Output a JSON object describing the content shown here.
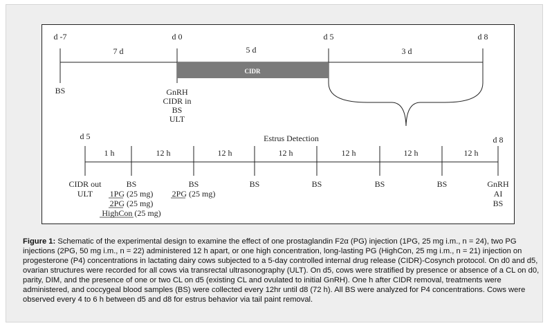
{
  "timeline1": {
    "days": [
      "d -7",
      "d 0",
      "d 5",
      "d 8"
    ],
    "intervals": [
      "7 d",
      "5 d",
      "3 d"
    ],
    "cidr_label": "CIDR",
    "events": {
      "d_minus7": [
        "BS"
      ],
      "d0": [
        "GnRH",
        "CIDR in",
        "BS",
        "ULT"
      ]
    }
  },
  "timeline2": {
    "start_day": "d 5",
    "end_day": "d 8",
    "title": "Estrus Detection",
    "intervals": [
      "1 h",
      "12 h",
      "12 h",
      "12 h",
      "12 h",
      "12 h",
      "12 h"
    ],
    "events": {
      "start": [
        "CIDR out",
        "ULT"
      ],
      "t1": [
        "BS"
      ],
      "t1_treatments": [
        "1PG (25 mg)",
        "2PG (25 mg)",
        "HighCon (25 mg)"
      ],
      "t2": [
        "BS"
      ],
      "t2_treatments": [
        "2PG (25 mg)"
      ],
      "t3": [
        "BS"
      ],
      "t4": [
        "BS"
      ],
      "t5": [
        "BS"
      ],
      "t6": [
        "BS"
      ],
      "end": [
        "GnRH",
        "AI",
        "BS"
      ]
    }
  },
  "caption": {
    "label": "Figure 1:",
    "text": " Schematic of the experimental design to examine the effect of one prostaglandin F2α (PG) injection (1PG, 25 mg i.m., n = 24), two PG injections (2PG, 50 mg i.m., n = 22) administered 12 h apart, or one high concentration, long-lasting PG (HighCon, 25 mg i.m., n = 21) injection on progesterone (P4) concentrations in lactating dairy cows subjected to a 5-day controlled internal drug release (CIDR)-Cosynch protocol. On d0 and d5, ovarian structures were recorded for all cows via transrectal ultrasonography (ULT). On d5, cows were stratified by presence or absence of a CL on d0, parity, DIM, and the presence of one or two CL on d5 (existing CL and ovulated to initial GnRH). One h after CIDR removal, treatments were administered, and coccygeal blood samples (BS) were collected every 12hr until d8 (72 h). All BS were analyzed for P4 concentrations. Cows were observed every 4 to 6 h between d5 and d8 for estrus behavior via tail paint removal."
  }
}
